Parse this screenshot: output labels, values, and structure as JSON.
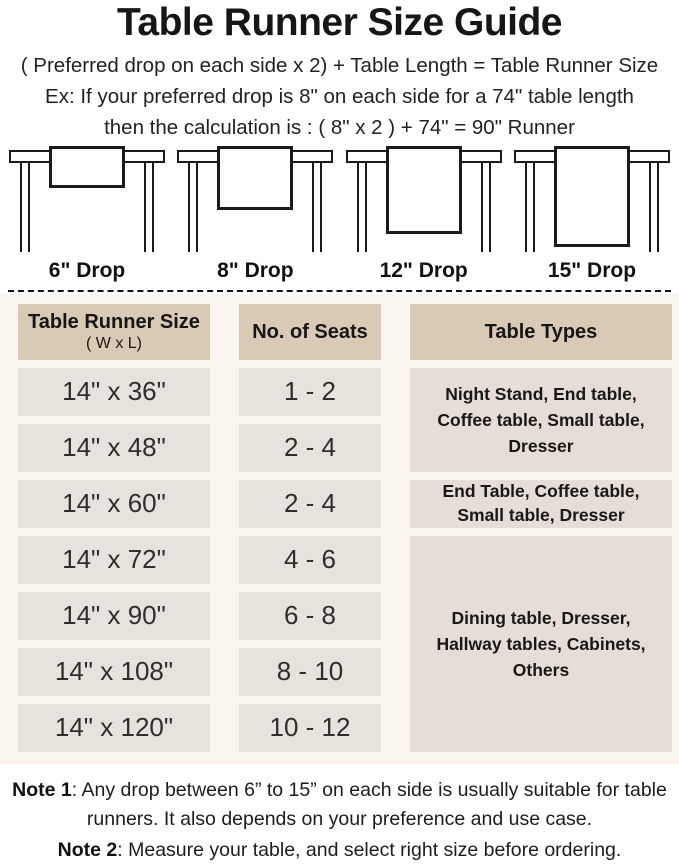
{
  "header": {
    "title": "Table Runner Size Guide",
    "formula": "( Preferred drop on each side x 2) + Table Length = Table Runner Size",
    "example_line1": "Ex: If your preferred drop is 8\" on each side for a 74\" table length",
    "example_line2": "then the calculation is : ( 8\" x 2 ) + 74\" = 90\" Runner"
  },
  "illustrations": [
    {
      "drop_label": "6\" Drop"
    },
    {
      "drop_label": "8\" Drop"
    },
    {
      "drop_label": "12\" Drop"
    },
    {
      "drop_label": "15\" Drop"
    }
  ],
  "size_table": {
    "headers": {
      "col1_title": "Table Runner Size",
      "col1_sub": "( W x L)",
      "col2": "No. of Seats",
      "col3": "Table Types"
    },
    "rows": [
      {
        "size": "14\" x 36\"",
        "seats": "1 - 2"
      },
      {
        "size": "14\" x 48\"",
        "seats": "2 - 4"
      },
      {
        "size": "14\" x 60\"",
        "seats": "2 - 4"
      },
      {
        "size": "14\" x 72\"",
        "seats": "4 - 6"
      },
      {
        "size": "14\" x 90\"",
        "seats": "6 - 8"
      },
      {
        "size": "14\" x 108\"",
        "seats": "8 - 10"
      },
      {
        "size": "14\" x 120\"",
        "seats": "10 - 12"
      }
    ],
    "table_types": [
      {
        "label": "Night Stand, End table, Coffee table, Small table, Dresser",
        "row_span": 2
      },
      {
        "label": "End Table, Coffee table, Small table, Dresser",
        "row_span": 1
      },
      {
        "label": "Dining table, Dresser, Hallway tables, Cabinets, Others",
        "row_span": 4
      }
    ]
  },
  "notes": [
    {
      "label": "Note 1",
      "text": ": Any drop between 6” to 15” on each side is usually suitable for table runners. It also depends on your preference and use case."
    },
    {
      "label": "Note 2",
      "text": ": Measure your table, and select right size before ordering."
    }
  ],
  "colors": {
    "header_cell_bg": "#d9cab6",
    "data_cell_bg": "#e8e2dc",
    "types_cell_bg": "#e6ded6",
    "table_section_bg": "#faf5ee",
    "line_art": "#1a1a1a",
    "text": "#1b1b1b"
  }
}
